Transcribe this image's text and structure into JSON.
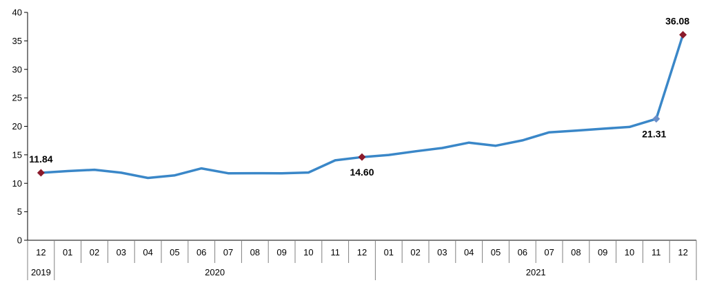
{
  "chart_data": {
    "type": "line",
    "title": "",
    "xlabel": "",
    "ylabel": "",
    "ylim": [
      0,
      40
    ],
    "yticks": [
      0,
      5,
      10,
      15,
      20,
      25,
      30,
      35,
      40
    ],
    "grid": false,
    "categories": [
      "12",
      "01",
      "02",
      "03",
      "04",
      "05",
      "06",
      "07",
      "08",
      "09",
      "10",
      "11",
      "12",
      "01",
      "02",
      "03",
      "04",
      "05",
      "06",
      "07",
      "08",
      "09",
      "10",
      "11",
      "12"
    ],
    "year_groups": [
      {
        "label": "2019",
        "span": 1
      },
      {
        "label": "2020",
        "span": 12
      },
      {
        "label": "2021",
        "span": 12
      }
    ],
    "series": [
      {
        "values": [
          11.84,
          12.15,
          12.37,
          11.86,
          10.94,
          11.39,
          12.62,
          11.76,
          11.77,
          11.75,
          11.89,
          14.03,
          14.6,
          14.97,
          15.61,
          16.19,
          17.14,
          16.59,
          17.53,
          18.95,
          19.25,
          19.58,
          19.89,
          21.31,
          36.08
        ],
        "color": "#3a87c8"
      }
    ],
    "highlighted_points": [
      {
        "index": 0,
        "label": "11.84",
        "label_pos": "above"
      },
      {
        "index": 12,
        "label": "14.60",
        "label_pos": "below"
      },
      {
        "index": 23,
        "label": "21.31",
        "label_pos": "below"
      },
      {
        "index": 24,
        "label": "36.08",
        "label_pos": "above"
      }
    ],
    "marker_color": "#8b1a2b",
    "marker_color_alt": "#6b8fc9"
  }
}
